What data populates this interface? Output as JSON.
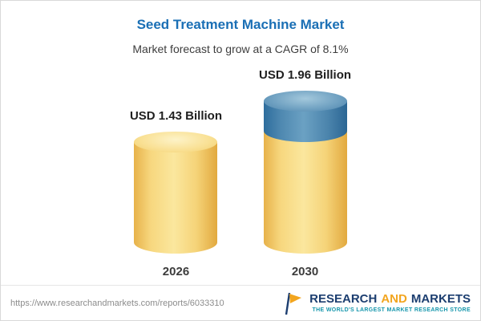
{
  "chart_data": {
    "type": "bar",
    "bar_style": "cylinder-3d",
    "title": "Seed Treatment Machine Market",
    "subtitle": "Market forecast to grow at a CAGR of 8.1%",
    "categories": [
      "2026",
      "2030"
    ],
    "values": [
      1.43,
      1.96
    ],
    "unit": "USD Billion",
    "data_labels": [
      "USD 1.43 Billion",
      "USD 1.96 Billion"
    ],
    "cagr": "8.1%",
    "ylim": [
      0,
      2.2
    ],
    "grid": false,
    "legend": false,
    "colors": {
      "title": "#1a6fb5",
      "base_segment": "#f6d075",
      "growth_segment": "#4a83ab"
    }
  },
  "footer": {
    "url": "https://www.researchandmarkets.com/reports/6033310",
    "brand": {
      "word1": "RESEARCH",
      "word2": "AND",
      "word3": "MARKETS",
      "tagline": "THE WORLD'S LARGEST MARKET RESEARCH STORE",
      "logo_icon": "flag-icon",
      "colors": {
        "navy": "#1c3e70",
        "orange": "#f2a51f",
        "teal": "#1596ac"
      }
    }
  }
}
